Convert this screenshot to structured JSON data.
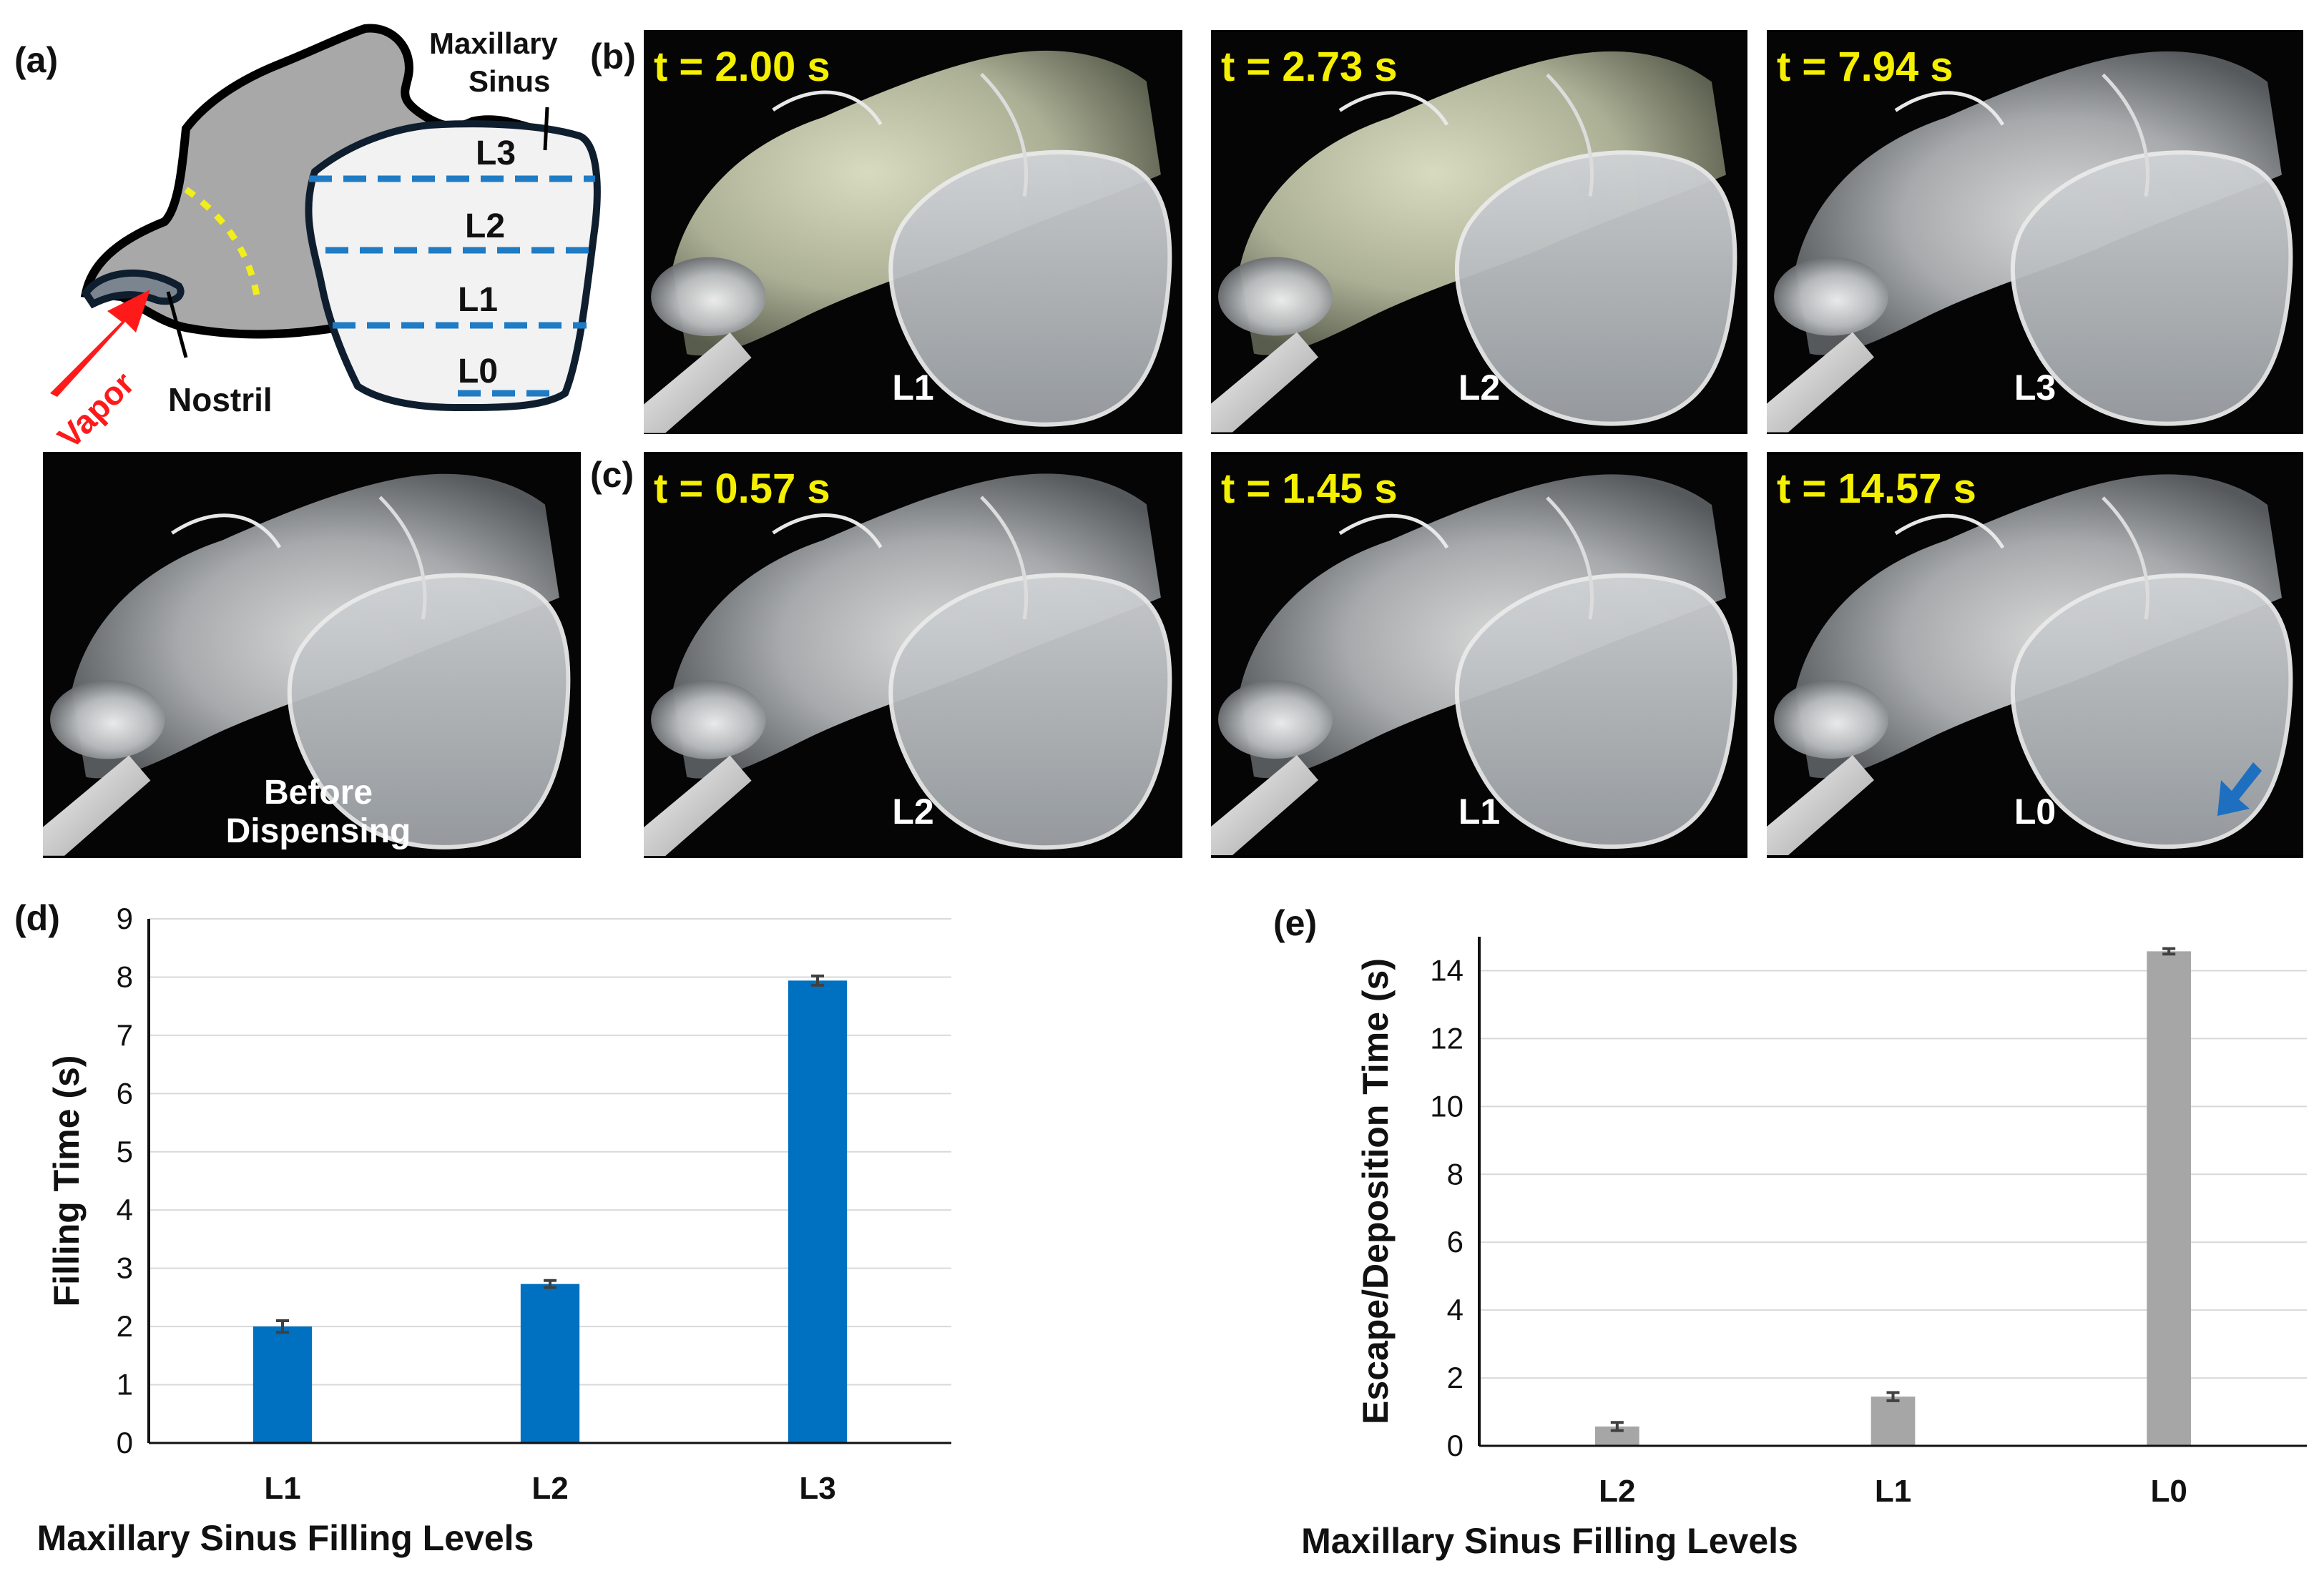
{
  "panels": {
    "a": "(a)",
    "b": "(b)",
    "c": "(c)",
    "d": "(d)",
    "e": "(e)"
  },
  "schematic": {
    "sinus_label_line1": "Maxillary",
    "sinus_label_line2": "Sinus",
    "levels": [
      "L3",
      "L2",
      "L1",
      "L0"
    ],
    "vapor_label": "Vapor",
    "nostril_label": "Nostril",
    "colors": {
      "tissue": "#a8a8a8",
      "sinus": "#f2f2f2",
      "level_line": "#1e7bc4",
      "dotted": "#f2ee1a",
      "arrow": "#ff1a1a"
    }
  },
  "before_photo": {
    "line1": "Before",
    "line2": "Dispensing"
  },
  "row_b": [
    {
      "time": "t = 2.00 s",
      "level": "L1"
    },
    {
      "time": "t = 2.73 s",
      "level": "L2"
    },
    {
      "time": "t = 7.94 s",
      "level": "L3"
    }
  ],
  "row_c": [
    {
      "time": "t = 0.57 s",
      "level": "L2"
    },
    {
      "time": "t = 1.45 s",
      "level": "L1"
    },
    {
      "time": "t = 14.57 s",
      "level": "L0"
    }
  ],
  "chart_data": [
    {
      "type": "bar",
      "title": "",
      "categories": [
        "L1",
        "L2",
        "L3"
      ],
      "values": [
        2.0,
        2.73,
        7.94
      ],
      "errors": [
        0.1,
        0.06,
        0.08
      ],
      "xlabel": "Maxillary Sinus Filling Levels",
      "ylabel": "Filling Time (s)",
      "ylim": [
        0,
        9
      ],
      "yticks": [
        0,
        1,
        2,
        3,
        4,
        5,
        6,
        7,
        8,
        9
      ],
      "grid": true,
      "color": "#0070c0"
    },
    {
      "type": "bar",
      "title": "",
      "categories": [
        "L2",
        "L1",
        "L0"
      ],
      "values": [
        0.57,
        1.45,
        14.57
      ],
      "errors": [
        0.12,
        0.12,
        0.08
      ],
      "xlabel": "Maxillary Sinus Filling Levels",
      "ylabel": "Escape/Deposition Time (s)",
      "ylim": [
        0,
        15
      ],
      "yticks": [
        0,
        2,
        4,
        6,
        8,
        10,
        12,
        14
      ],
      "grid": true,
      "color": "#a6a6a6"
    }
  ]
}
